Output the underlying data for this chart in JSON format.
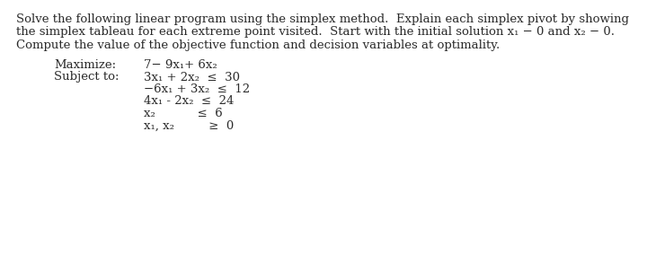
{
  "background_color": "#ffffff",
  "para_line1": "Solve the following linear program using the simplex method.  Explain each simplex pivot by showing",
  "para_line2": "the simplex tableau for each extreme point visited.  Start with the initial solution x₁ − 0 and x₂ − 0.",
  "para_line3": "Compute the value of the objective function and decision variables at optimality.",
  "label_maximize": "Maximize:",
  "label_subject": "Subject to:",
  "obj_func": "7− 9x₁+ 6x₂",
  "constraints": [
    "3x₁ + 2x₂  ≤  30",
    "−6x₁ + 3x₂  ≤  12",
    "4x₁ - 2x₂  ≤  24",
    "x₂           ≤  6",
    "x₁, x₂         ≥  0"
  ],
  "font_size": 9.5,
  "text_color": "#2a2a2a",
  "fig_width": 7.2,
  "fig_height": 2.83,
  "dpi": 100
}
